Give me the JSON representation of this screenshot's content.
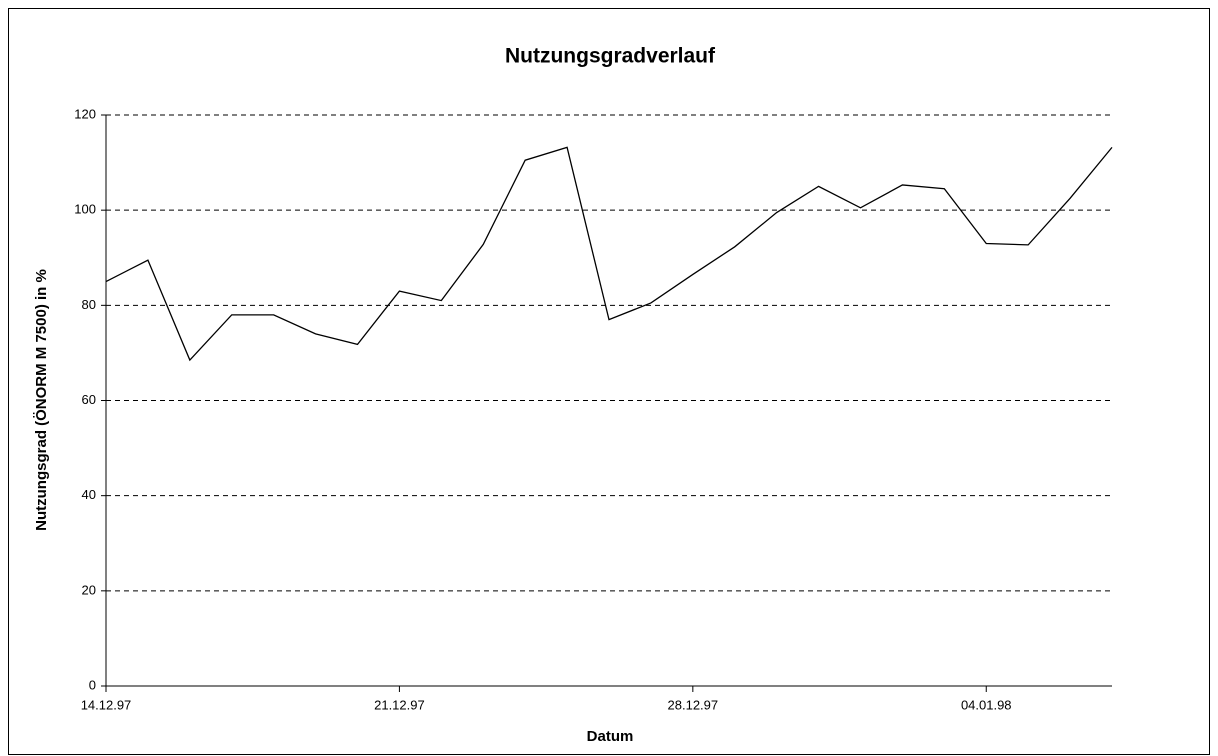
{
  "chart_data": {
    "type": "line",
    "title": "Nutzungsgradverlauf",
    "x_label": "Datum",
    "y_label": "Nutzungsgrad (ÖNORM M 7500) in %",
    "x": [
      "1997-12-14",
      "1997-12-15",
      "1997-12-16",
      "1997-12-17",
      "1997-12-18",
      "1997-12-19",
      "1997-12-20",
      "1997-12-21",
      "1997-12-22",
      "1997-12-23",
      "1997-12-24",
      "1997-12-25",
      "1997-12-26",
      "1997-12-27",
      "1997-12-28",
      "1997-12-29",
      "1997-12-30",
      "1997-12-31",
      "1998-01-01",
      "1998-01-02",
      "1998-01-03",
      "1998-01-04",
      "1998-01-05",
      "1998-01-06",
      "1998-01-07"
    ],
    "values": [
      85,
      89.5,
      68.5,
      78,
      78,
      74,
      71.8,
      83,
      81,
      92.8,
      110.5,
      113.2,
      77,
      80.5,
      86.5,
      92.3,
      99.5,
      105,
      100.5,
      105.3,
      104.5,
      93,
      92.7,
      102.5,
      113.2
    ],
    "color": "#000000",
    "xlim": [
      "1997-12-14",
      "1998-01-07"
    ],
    "xticks": [
      {
        "value": "1997-12-14",
        "label": "14.12.97"
      },
      {
        "value": "1997-12-21",
        "label": "21.12.97"
      },
      {
        "value": "1997-12-28",
        "label": "28.12.97"
      },
      {
        "value": "1998-01-04",
        "label": "04.01.98"
      }
    ],
    "ylim": [
      0,
      120
    ],
    "yticks": [
      0,
      20,
      40,
      60,
      80,
      100,
      120
    ],
    "grid": true
  }
}
